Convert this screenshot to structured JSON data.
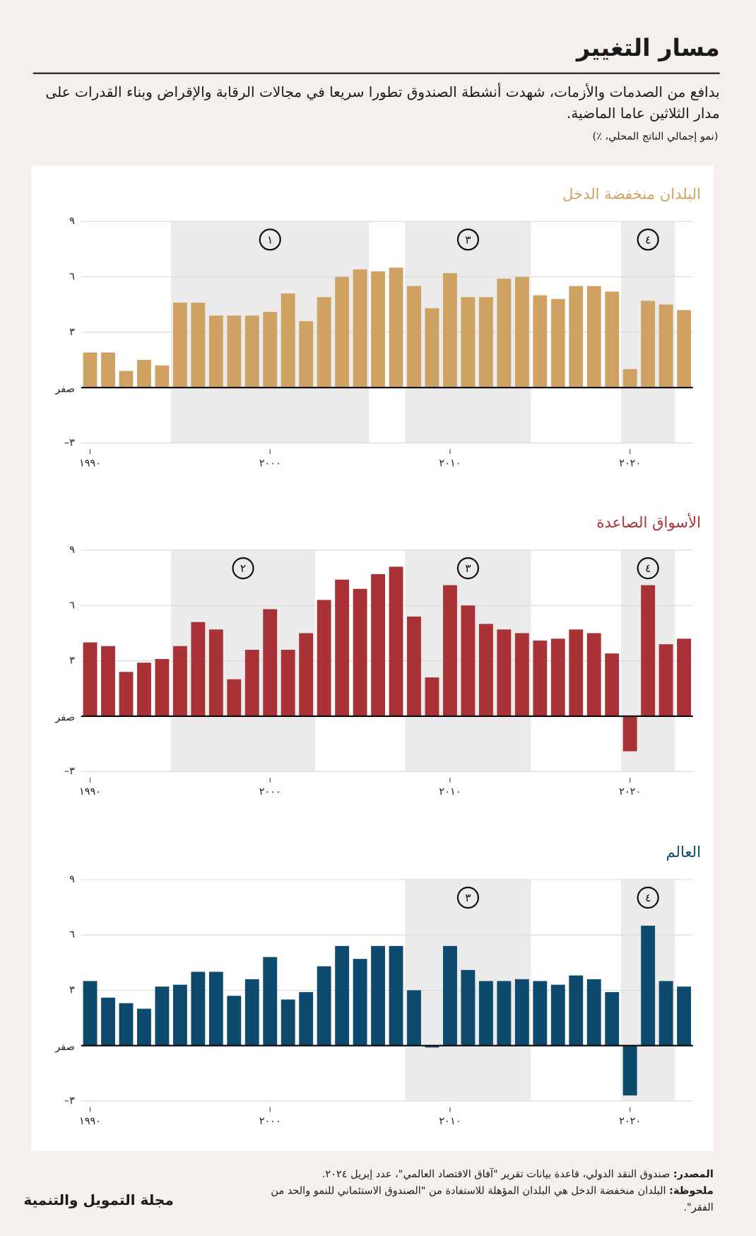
{
  "header": {
    "title": "مسار التغيير",
    "subtitle": "بدافع من الصدمات والأزمات، شهدت أنشطة الصندوق تطورا سريعا في مجالات الرقابة والإقراض وبناء القدرات على مدار الثلاثين عاما الماضية.",
    "unit": "(نمو إجمالي الناتج المحلي، ٪)"
  },
  "chart_data": [
    {
      "type": "bar",
      "title": "البلدان منخفضة الدخل",
      "color": "#cfa263",
      "x": [
        1990,
        1991,
        1992,
        1993,
        1994,
        1995,
        1996,
        1997,
        1998,
        1999,
        2000,
        2001,
        2002,
        2003,
        2004,
        2005,
        2006,
        2007,
        2008,
        2009,
        2010,
        2011,
        2012,
        2013,
        2014,
        2015,
        2016,
        2017,
        2018,
        2019,
        2020,
        2021,
        2022,
        2023
      ],
      "values": [
        1.9,
        1.9,
        0.9,
        1.5,
        1.2,
        4.6,
        4.6,
        3.9,
        3.9,
        3.9,
        4.1,
        5.1,
        3.6,
        4.9,
        6.0,
        6.4,
        6.3,
        6.5,
        5.5,
        4.3,
        6.2,
        4.9,
        4.9,
        5.9,
        6.0,
        5.0,
        4.8,
        5.5,
        5.5,
        5.2,
        1.0,
        4.7,
        4.5,
        4.2
      ],
      "xlim": [
        1989.5,
        2023.5
      ],
      "ylim": [
        -3,
        9
      ],
      "xticks": [
        {
          "value": 1990,
          "label": "١٩٩٠"
        },
        {
          "value": 2000,
          "label": "٢٠٠٠"
        },
        {
          "value": 2010,
          "label": "٢٠١٠"
        },
        {
          "value": 2020,
          "label": "٢٠٢٠"
        }
      ],
      "yticks": [
        {
          "value": -3,
          "label": "–٣"
        },
        {
          "value": 0,
          "label": "صفر"
        },
        {
          "value": 3,
          "label": "٣"
        },
        {
          "value": 6,
          "label": "٦"
        },
        {
          "value": 9,
          "label": "٩"
        }
      ],
      "grid": true,
      "shaded": [
        {
          "from": 1994.5,
          "to": 2005.5,
          "label": "١"
        },
        {
          "from": 2007.5,
          "to": 2014.5,
          "label": "٣"
        },
        {
          "from": 2019.5,
          "to": 2022.5,
          "label": "٤"
        }
      ]
    },
    {
      "type": "bar",
      "title": "الأسواق الصاعدة",
      "color": "#a83236",
      "x": [
        1990,
        1991,
        1992,
        1993,
        1994,
        1995,
        1996,
        1997,
        1998,
        1999,
        2000,
        2001,
        2002,
        2003,
        2004,
        2005,
        2006,
        2007,
        2008,
        2009,
        2010,
        2011,
        2012,
        2013,
        2014,
        2015,
        2016,
        2017,
        2018,
        2019,
        2020,
        2021,
        2022,
        2023
      ],
      "values": [
        4.0,
        3.8,
        2.4,
        2.9,
        3.1,
        3.8,
        5.1,
        4.7,
        2.0,
        3.6,
        5.8,
        3.6,
        4.5,
        6.3,
        7.4,
        6.9,
        7.7,
        8.1,
        5.4,
        2.1,
        7.1,
        6.0,
        5.0,
        4.7,
        4.5,
        4.1,
        4.2,
        4.7,
        4.5,
        3.4,
        -1.9,
        7.1,
        3.9,
        4.2
      ],
      "xlim": [
        1989.5,
        2023.5
      ],
      "ylim": [
        -3,
        9
      ],
      "xticks": [
        {
          "value": 1990,
          "label": "١٩٩٠"
        },
        {
          "value": 2000,
          "label": "٢٠٠٠"
        },
        {
          "value": 2010,
          "label": "٢٠١٠"
        },
        {
          "value": 2020,
          "label": "٢٠٢٠"
        }
      ],
      "yticks": [
        {
          "value": -3,
          "label": "–٣"
        },
        {
          "value": 0,
          "label": "صفر"
        },
        {
          "value": 3,
          "label": "٣"
        },
        {
          "value": 6,
          "label": "٦"
        },
        {
          "value": 9,
          "label": "٩"
        }
      ],
      "grid": true,
      "shaded": [
        {
          "from": 1994.5,
          "to": 2002.5,
          "label": "٢"
        },
        {
          "from": 2007.5,
          "to": 2014.5,
          "label": "٣"
        },
        {
          "from": 2019.5,
          "to": 2022.5,
          "label": "٤"
        }
      ]
    },
    {
      "type": "bar",
      "title": "العالم",
      "color": "#0d4a6e",
      "x": [
        1990,
        1991,
        1992,
        1993,
        1994,
        1995,
        1996,
        1997,
        1998,
        1999,
        2000,
        2001,
        2002,
        2003,
        2004,
        2005,
        2006,
        2007,
        2008,
        2009,
        2010,
        2011,
        2012,
        2013,
        2014,
        2015,
        2016,
        2017,
        2018,
        2019,
        2020,
        2021,
        2022,
        2023
      ],
      "values": [
        3.5,
        2.6,
        2.3,
        2.0,
        3.2,
        3.3,
        4.0,
        4.0,
        2.7,
        3.6,
        4.8,
        2.5,
        2.9,
        4.3,
        5.4,
        4.7,
        5.4,
        5.4,
        3.0,
        -0.1,
        5.4,
        4.1,
        3.5,
        3.5,
        3.6,
        3.5,
        3.3,
        3.8,
        3.6,
        2.9,
        -2.7,
        6.5,
        3.5,
        3.2
      ],
      "xlim": [
        1989.5,
        2023.5
      ],
      "ylim": [
        -3,
        9
      ],
      "xticks": [
        {
          "value": 1990,
          "label": "١٩٩٠"
        },
        {
          "value": 2000,
          "label": "٢٠٠٠"
        },
        {
          "value": 2010,
          "label": "٢٠١٠"
        },
        {
          "value": 2020,
          "label": "٢٠٢٠"
        }
      ],
      "yticks": [
        {
          "value": -3,
          "label": "–٣"
        },
        {
          "value": 0,
          "label": "صفر"
        },
        {
          "value": 3,
          "label": "٣"
        },
        {
          "value": 6,
          "label": "٦"
        },
        {
          "value": 9,
          "label": "٩"
        }
      ],
      "grid": true,
      "shaded": [
        {
          "from": 2007.5,
          "to": 2014.5,
          "label": "٣"
        },
        {
          "from": 2019.5,
          "to": 2022.5,
          "label": "٤"
        }
      ]
    }
  ],
  "footer": {
    "source_label": "المصدر:",
    "source": "صندوق النقد الدولي، قاعدة بيانات تقرير \"آفاق الاقتصاد العالمي\"، عدد إبريل ٢٠٢٤.",
    "note_label": "ملحوظة:",
    "note": "البلدان منخفضة الدخل هي البلدان المؤهلة للاستفادة من \"الصندوق الاستئماني للنمو والحد من الفقر\".",
    "brand": "مجلة التمويل والتنمية"
  }
}
